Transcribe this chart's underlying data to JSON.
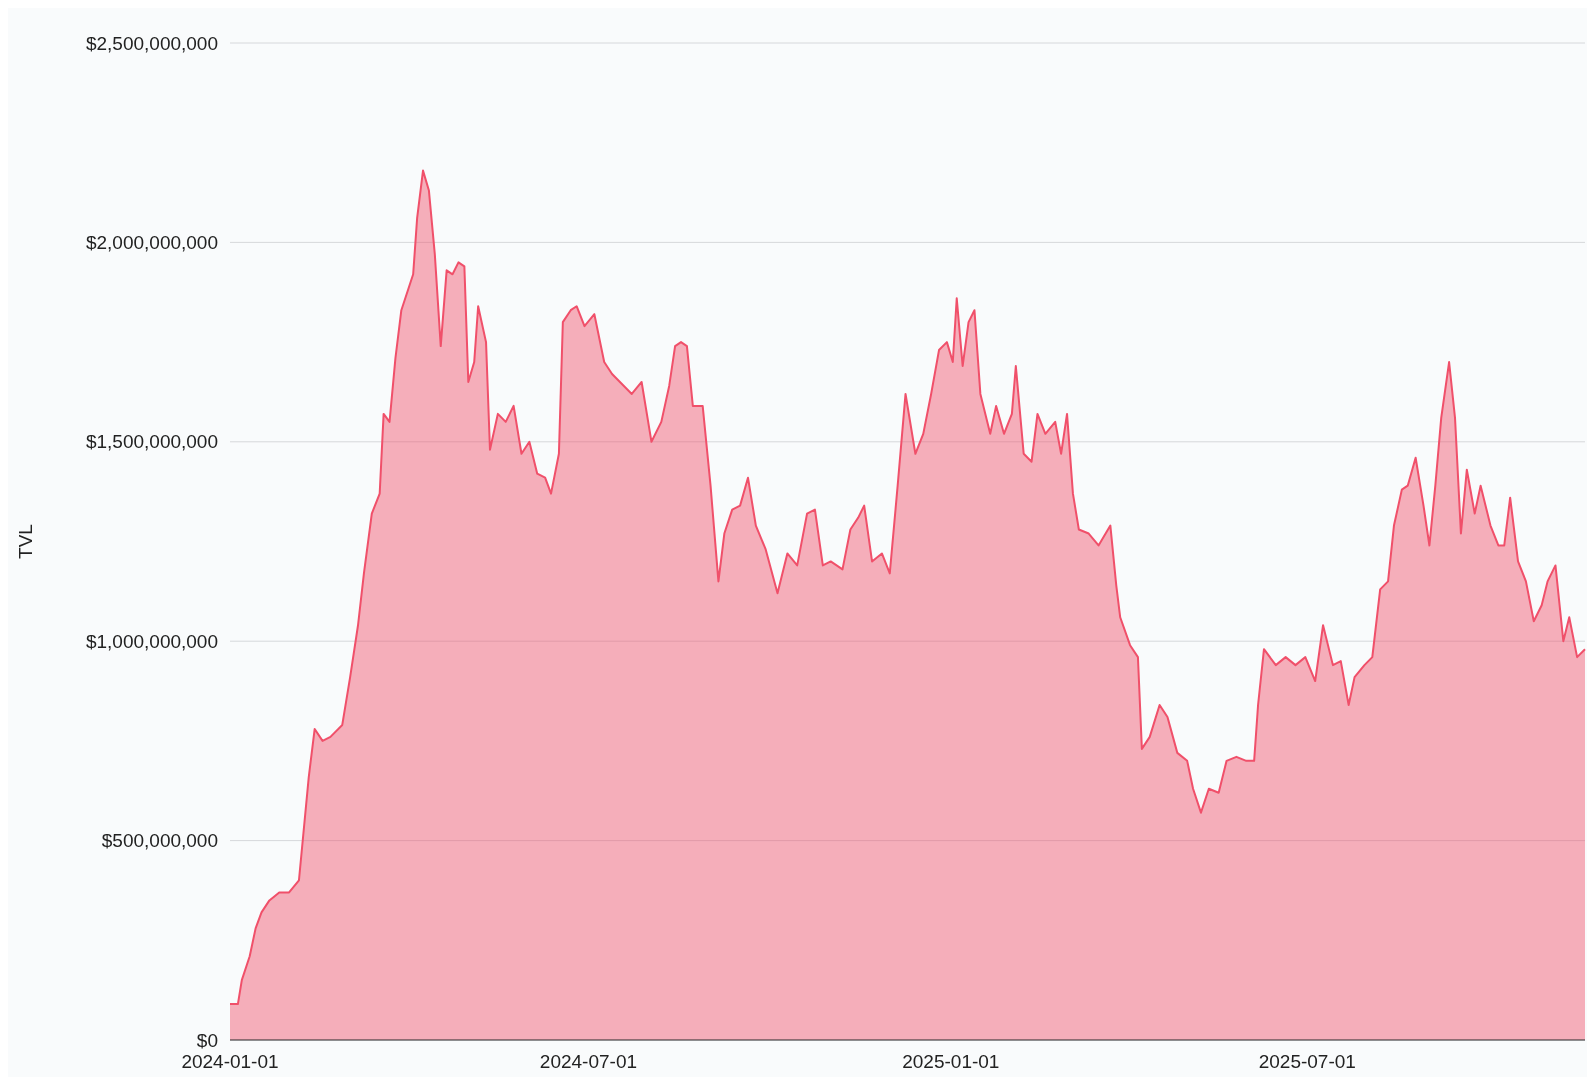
{
  "chart_data": {
    "type": "area",
    "ylabel": "TVL",
    "grid": "y",
    "xlim": [
      "2024-01-01",
      "2025-11-19"
    ],
    "xticks": [
      {
        "value": "2024-01-01",
        "label": "2024-01-01"
      },
      {
        "value": "2024-07-01",
        "label": "2024-07-01"
      },
      {
        "value": "2025-01-01",
        "label": "2025-01-01"
      },
      {
        "value": "2025-07-01",
        "label": "2025-07-01"
      }
    ],
    "ylim": [
      0,
      2500000000
    ],
    "yticks": [
      {
        "value": 0,
        "label": "$0"
      },
      {
        "value": 500000000,
        "label": "$500,000,000"
      },
      {
        "value": 1000000000,
        "label": "$1,000,000,000"
      },
      {
        "value": 1500000000,
        "label": "$1,500,000,000"
      },
      {
        "value": 2000000000,
        "label": "$2,000,000,000"
      },
      {
        "value": 2500000000,
        "label": "$2,500,000,000"
      }
    ],
    "x": [
      "2024-01-01",
      "2024-01-05",
      "2024-01-07",
      "2024-01-11",
      "2024-01-14",
      "2024-01-17",
      "2024-01-21",
      "2024-01-26",
      "2024-01-31",
      "2024-02-05",
      "2024-02-10",
      "2024-02-13",
      "2024-02-17",
      "2024-02-21",
      "2024-02-27",
      "2024-03-02",
      "2024-03-06",
      "2024-03-09",
      "2024-03-13",
      "2024-03-17",
      "2024-03-19",
      "2024-03-22",
      "2024-03-25",
      "2024-03-28",
      "2024-04-03",
      "2024-04-05",
      "2024-04-08",
      "2024-04-11",
      "2024-04-14",
      "2024-04-17",
      "2024-04-20",
      "2024-04-23",
      "2024-04-26",
      "2024-04-29",
      "2024-05-01",
      "2024-05-04",
      "2024-05-06",
      "2024-05-10",
      "2024-05-12",
      "2024-05-16",
      "2024-05-20",
      "2024-05-24",
      "2024-05-28",
      "2024-06-01",
      "2024-06-05",
      "2024-06-09",
      "2024-06-12",
      "2024-06-16",
      "2024-06-18",
      "2024-06-22",
      "2024-06-25",
      "2024-06-29",
      "2024-07-04",
      "2024-07-09",
      "2024-07-13",
      "2024-07-17",
      "2024-07-23",
      "2024-07-28",
      "2024-08-02",
      "2024-08-07",
      "2024-08-11",
      "2024-08-14",
      "2024-08-17",
      "2024-08-20",
      "2024-08-23",
      "2024-08-28",
      "2024-09-01",
      "2024-09-05",
      "2024-09-08",
      "2024-09-12",
      "2024-09-16",
      "2024-09-20",
      "2024-09-24",
      "2024-09-29",
      "2024-10-05",
      "2024-10-10",
      "2024-10-15",
      "2024-10-20",
      "2024-10-24",
      "2024-10-28",
      "2024-11-01",
      "2024-11-07",
      "2024-11-11",
      "2024-11-15",
      "2024-11-18",
      "2024-11-22",
      "2024-11-27",
      "2024-12-01",
      "2024-12-05",
      "2024-12-09",
      "2024-12-14",
      "2024-12-18",
      "2024-12-22",
      "2024-12-26",
      "2024-12-30",
      "2025-01-02",
      "2025-01-04",
      "2025-01-07",
      "2025-01-10",
      "2025-01-13",
      "2025-01-16",
      "2025-01-21",
      "2025-01-24",
      "2025-01-28",
      "2025-02-01",
      "2025-02-03",
      "2025-02-07",
      "2025-02-11",
      "2025-02-14",
      "2025-02-18",
      "2025-02-23",
      "2025-02-26",
      "2025-03-01",
      "2025-03-04",
      "2025-03-07",
      "2025-03-12",
      "2025-03-17",
      "2025-03-23",
      "2025-03-26",
      "2025-03-28",
      "2025-04-02",
      "2025-04-06",
      "2025-04-08",
      "2025-04-12",
      "2025-04-17",
      "2025-04-21",
      "2025-04-26",
      "2025-05-01",
      "2025-05-04",
      "2025-05-08",
      "2025-05-12",
      "2025-05-17",
      "2025-05-21",
      "2025-05-26",
      "2025-05-31",
      "2025-06-04",
      "2025-06-06",
      "2025-06-09",
      "2025-06-15",
      "2025-06-20",
      "2025-06-25",
      "2025-06-30",
      "2025-07-05",
      "2025-07-09",
      "2025-07-14",
      "2025-07-18",
      "2025-07-22",
      "2025-07-25",
      "2025-07-30",
      "2025-08-03",
      "2025-08-07",
      "2025-08-11",
      "2025-08-14",
      "2025-08-18",
      "2025-08-21",
      "2025-08-25",
      "2025-08-29",
      "2025-09-01",
      "2025-09-04",
      "2025-09-07",
      "2025-09-11",
      "2025-09-14",
      "2025-09-17",
      "2025-09-20",
      "2025-09-24",
      "2025-09-27",
      "2025-10-02",
      "2025-10-06",
      "2025-10-09",
      "2025-10-12",
      "2025-10-16",
      "2025-10-20",
      "2025-10-24",
      "2025-10-28",
      "2025-10-31",
      "2025-11-04",
      "2025-11-08",
      "2025-11-11",
      "2025-11-15",
      "2025-11-19"
    ],
    "series": [
      {
        "color": "#f0506a",
        "values": [
          90000000,
          90000000,
          150000000,
          210000000,
          280000000,
          320000000,
          350000000,
          370000000,
          370000000,
          400000000,
          660000000,
          780000000,
          750000000,
          760000000,
          790000000,
          910000000,
          1040000000,
          1170000000,
          1320000000,
          1370000000,
          1570000000,
          1550000000,
          1710000000,
          1830000000,
          1920000000,
          2060000000,
          2180000000,
          2130000000,
          1970000000,
          1740000000,
          1930000000,
          1920000000,
          1950000000,
          1940000000,
          1650000000,
          1700000000,
          1840000000,
          1750000000,
          1480000000,
          1570000000,
          1550000000,
          1590000000,
          1470000000,
          1500000000,
          1420000000,
          1410000000,
          1370000000,
          1470000000,
          1800000000,
          1830000000,
          1840000000,
          1790000000,
          1820000000,
          1700000000,
          1670000000,
          1650000000,
          1620000000,
          1650000000,
          1500000000,
          1550000000,
          1640000000,
          1740000000,
          1750000000,
          1740000000,
          1590000000,
          1590000000,
          1390000000,
          1150000000,
          1270000000,
          1330000000,
          1340000000,
          1410000000,
          1290000000,
          1230000000,
          1120000000,
          1220000000,
          1190000000,
          1320000000,
          1330000000,
          1190000000,
          1200000000,
          1180000000,
          1280000000,
          1310000000,
          1340000000,
          1200000000,
          1220000000,
          1170000000,
          1390000000,
          1620000000,
          1470000000,
          1520000000,
          1620000000,
          1730000000,
          1750000000,
          1700000000,
          1860000000,
          1690000000,
          1800000000,
          1830000000,
          1620000000,
          1520000000,
          1590000000,
          1520000000,
          1570000000,
          1690000000,
          1470000000,
          1450000000,
          1570000000,
          1520000000,
          1550000000,
          1470000000,
          1570000000,
          1370000000,
          1280000000,
          1270000000,
          1240000000,
          1290000000,
          1140000000,
          1060000000,
          990000000,
          960000000,
          730000000,
          760000000,
          840000000,
          810000000,
          720000000,
          700000000,
          630000000,
          570000000,
          630000000,
          620000000,
          700000000,
          710000000,
          700000000,
          700000000,
          840000000,
          980000000,
          940000000,
          960000000,
          940000000,
          960000000,
          900000000,
          1040000000,
          940000000,
          950000000,
          840000000,
          910000000,
          940000000,
          960000000,
          1130000000,
          1150000000,
          1290000000,
          1380000000,
          1390000000,
          1460000000,
          1340000000,
          1240000000,
          1390000000,
          1560000000,
          1700000000,
          1560000000,
          1270000000,
          1430000000,
          1320000000,
          1390000000,
          1290000000,
          1240000000,
          1240000000,
          1360000000,
          1200000000,
          1150000000,
          1050000000,
          1090000000,
          1150000000,
          1190000000,
          1000000000,
          1060000000,
          960000000,
          980000000
        ]
      }
    ]
  }
}
